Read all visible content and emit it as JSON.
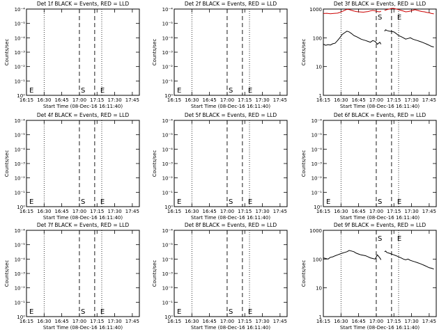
{
  "colors": {
    "events": "#000000",
    "lld": "#cc0000",
    "axis": "#000000"
  },
  "common": {
    "xlabel": "Start Time (08-Dec-16 16:11:40)",
    "ylabel": "Counts/sec",
    "xticks": [
      "16:15",
      "16:30",
      "16:45",
      "17:00",
      "17:15",
      "17:30",
      "17:45"
    ],
    "marker_s": "S",
    "marker_e": "E"
  },
  "chart_data": [
    {
      "type": "line",
      "title": "Det 1f BLACK = Events, RED = LLD",
      "ylabels": [
        "10⁻⁴",
        "10⁻⁵",
        "10⁻⁴",
        "10⁻³",
        "10⁻²",
        "10⁻¹",
        "10⁰"
      ],
      "scale": "neg",
      "series": []
    },
    {
      "type": "line",
      "title": "Det 2f BLACK = Events, RED = LLD",
      "ylabels": [
        "10⁻⁴",
        "10⁻⁵",
        "10⁻⁴",
        "10⁻³",
        "10⁻²",
        "10⁻¹",
        "10⁰"
      ],
      "scale": "neg",
      "series": []
    },
    {
      "type": "line",
      "title": "Det 3f BLACK = Events, RED = LLD",
      "ylabels": [
        "1000",
        "100",
        "10",
        "1"
      ],
      "scale": "log",
      "ylim": [
        1,
        1000
      ],
      "series": [
        {
          "color": "red",
          "segments": [
            {
              "x": [
                0,
                3,
                6,
                9,
                12,
                14,
                16,
                18,
                20,
                22,
                24,
                26,
                28,
                30,
                32,
                34,
                36,
                38,
                40,
                42,
                44,
                46,
                48,
                49
              ],
              "y": [
                700,
                710,
                690,
                705,
                720,
                760,
                820,
                900,
                980,
                960,
                900,
                850,
                820,
                800,
                790,
                780,
                800,
                820,
                860,
                900,
                860,
                820,
                800,
                850
              ]
            },
            {
              "x": [
                52,
                54,
                56,
                58,
                60,
                62,
                64,
                66,
                68,
                70,
                72,
                74,
                76,
                78,
                80,
                82,
                84,
                86,
                88,
                90,
                92,
                94
              ],
              "y": [
                900,
                950,
                1000,
                1050,
                1050,
                1000,
                950,
                900,
                850,
                800,
                820,
                850,
                900,
                950,
                900,
                850,
                820,
                800,
                760,
                740,
                700,
                680
              ]
            }
          ]
        },
        {
          "color": "black",
          "segments": [
            {
              "x": [
                0,
                2,
                4,
                6,
                8,
                10,
                12,
                14,
                16,
                18,
                20,
                22,
                24,
                26,
                28,
                30,
                32,
                34,
                36,
                38,
                40,
                42,
                44,
                46,
                48,
                49
              ],
              "y": [
                60,
                55,
                58,
                56,
                62,
                65,
                80,
                100,
                130,
                150,
                170,
                160,
                140,
                120,
                110,
                100,
                90,
                85,
                80,
                75,
                70,
                80,
                75,
                60,
                70,
                60
              ]
            },
            {
              "x": [
                52,
                53,
                54,
                56,
                58,
                60,
                62,
                64,
                66,
                68,
                70,
                72,
                74,
                76,
                78,
                80,
                82,
                84,
                86,
                88,
                90,
                92,
                94
              ],
              "y": [
                170,
                190,
                180,
                170,
                165,
                160,
                140,
                120,
                110,
                100,
                90,
                95,
                100,
                90,
                85,
                80,
                75,
                70,
                65,
                60,
                55,
                50,
                48
              ]
            }
          ]
        }
      ]
    },
    {
      "type": "line",
      "title": "Det 4f BLACK = Events, RED = LLD",
      "ylabels": [
        "10⁻⁴",
        "10⁻⁵",
        "10⁻⁴",
        "10⁻³",
        "10⁻²",
        "10⁻¹",
        "10⁰"
      ],
      "scale": "neg",
      "series": []
    },
    {
      "type": "line",
      "title": "Det 5f BLACK = Events, RED = LLD",
      "ylabels": [
        "10⁻⁴",
        "10⁻⁵",
        "10⁻⁴",
        "10⁻³",
        "10⁻²",
        "10⁻¹",
        "10⁰"
      ],
      "scale": "neg",
      "series": []
    },
    {
      "type": "line",
      "title": "Det 6f BLACK = Events, RED = LLD",
      "ylabels": [
        "10⁻⁴",
        "10⁻⁵",
        "10⁻⁴",
        "10⁻³",
        "10⁻²",
        "10⁻¹",
        "10⁰"
      ],
      "scale": "neg",
      "series": []
    },
    {
      "type": "line",
      "title": "Det 7f BLACK = Events, RED = LLD",
      "ylabels": [
        "10⁻⁴",
        "10⁻⁵",
        "10⁻⁴",
        "10⁻³",
        "10⁻²",
        "10⁻¹",
        "10⁰"
      ],
      "scale": "neg",
      "series": []
    },
    {
      "type": "line",
      "title": "Det 8f BLACK = Events, RED = LLD",
      "ylabels": [
        "10⁻⁴",
        "10⁻⁵",
        "10⁻⁴",
        "10⁻³",
        "10⁻²",
        "10⁻¹",
        "10⁰"
      ],
      "scale": "neg",
      "series": []
    },
    {
      "type": "line",
      "title": "Det 9f BLACK = Events, RED = LLD",
      "ylabels": [
        "1000",
        "100",
        "10",
        "1"
      ],
      "scale": "log",
      "ylim": [
        1,
        1000
      ],
      "series": [
        {
          "color": "black",
          "segments": [
            {
              "x": [
                0,
                2,
                4,
                6,
                8,
                10,
                12,
                14,
                16,
                18,
                20,
                22,
                24,
                26,
                28,
                30,
                32,
                34,
                36,
                38,
                40,
                42,
                44,
                46,
                48,
                49
              ],
              "y": [
                110,
                105,
                100,
                115,
                120,
                130,
                140,
                150,
                160,
                170,
                180,
                200,
                190,
                180,
                160,
                150,
                140,
                135,
                130,
                120,
                110,
                105,
                100,
                140,
                110,
                95
              ]
            },
            {
              "x": [
                52,
                53,
                54,
                56,
                58,
                60,
                62,
                64,
                66,
                68,
                70,
                72,
                74,
                76,
                78,
                80,
                82,
                84,
                86,
                88,
                90,
                92,
                94
              ],
              "y": [
                180,
                190,
                170,
                160,
                150,
                140,
                130,
                120,
                110,
                100,
                95,
                100,
                90,
                85,
                80,
                75,
                70,
                65,
                60,
                55,
                50,
                48,
                45
              ]
            }
          ]
        }
      ]
    }
  ]
}
